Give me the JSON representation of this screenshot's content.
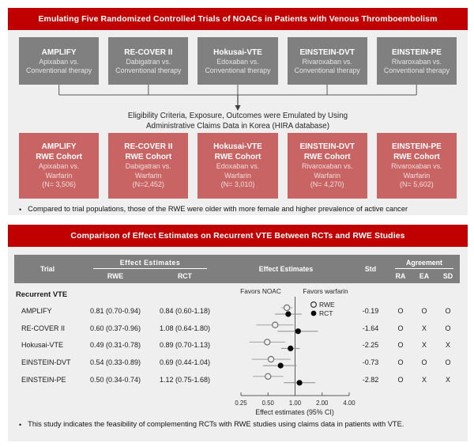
{
  "colors": {
    "accent_red": "#C00000",
    "rct_box_gray": "#808080",
    "rwe_box_salmon": "#C96464",
    "table_header_gray": "#7F7F7F",
    "panel_background": "#EFEFEF"
  },
  "panel1": {
    "title": "Emulating Five Randomized Controlled Trials of NOACs in Patients with Venous Thromboembolism",
    "rct_boxes": [
      {
        "name": "AMPLIFY",
        "line1": "Apixaban vs.",
        "line2": "Conventional therapy"
      },
      {
        "name": "RE-COVER II",
        "line1": "Dabigatran vs.",
        "line2": "Conventional therapy"
      },
      {
        "name": "Hokusai-VTE",
        "line1": "Edoxaban vs.",
        "line2": "Conventional therapy"
      },
      {
        "name": "EINSTEIN-DVT",
        "line1": "Rivaroxaban vs.",
        "line2": "Conventional therapy"
      },
      {
        "name": "EINSTEIN-PE",
        "line1": "Rivaroxaban vs.",
        "line2": "Conventional therapy"
      }
    ],
    "arrow_text_line1": "Eligibility Criteria, Exposure, Outcomes were Emulated by Using",
    "arrow_text_line2": "Administrative Claims Data in Korea (HIRA database)",
    "rwe_boxes": [
      {
        "name": "AMPLIFY",
        "cohort": "RWE Cohort",
        "line1": "Apixaban vs.",
        "line2": "Warfarin",
        "n": "(N= 3,506)"
      },
      {
        "name": "RE-COVER II",
        "cohort": "RWE Cohort",
        "line1": "Dabigatran vs.",
        "line2": "Warfarin",
        "n": "(N=2,452)"
      },
      {
        "name": "Hokusai-VTE",
        "cohort": "RWE Cohort",
        "line1": "Edoxaban vs.",
        "line2": "Warfarin",
        "n": "(N= 3,010)"
      },
      {
        "name": "EINSTEIN-DVT",
        "cohort": "RWE Cohort",
        "line1": "Rivaroxaban vs.",
        "line2": "Warfarin",
        "n": "(N= 4,270)"
      },
      {
        "name": "EINSTEIN-PE",
        "cohort": "RWE Cohort",
        "line1": "Rivaroxaban vs.",
        "line2": "Warfarin",
        "n": "(N= 5,602)"
      }
    ],
    "bullet": "Compared to trial populations, those of the RWE were older with more female and higher prevalence of active cancer"
  },
  "panel2": {
    "title": "Comparison of Effect Estimates on Recurrent VTE Between RCTs and RWE Studies",
    "table": {
      "col_trial": "Trial",
      "col_effect_group": "Effect  Estimates",
      "col_rwe": "RWE",
      "col_rct": "RCT",
      "col_effect_plot": "Effect Estimates",
      "col_std": "Std",
      "col_agreement": "Agreement",
      "col_ra": "RA",
      "col_ea": "EA",
      "col_sd": "SD",
      "section": "Recurrent VTE",
      "rows": [
        {
          "trial": "AMPLIFY",
          "rwe": "0.81 (0.70-0.94)",
          "rct": "0.84 (0.60-1.18)",
          "std": "-0.19",
          "ra": "O",
          "ea": "O",
          "sd": "O"
        },
        {
          "trial": "RE-COVER II",
          "rwe": "0.60 (0.37-0.96)",
          "rct": "1.08 (0.64-1.80)",
          "std": "-1.64",
          "ra": "O",
          "ea": "X",
          "sd": "O"
        },
        {
          "trial": "Hokusai-VTE",
          "rwe": "0.49 (0.31-0.78)",
          "rct": "0.89 (0.70-1.13)",
          "std": "-2.25",
          "ra": "O",
          "ea": "X",
          "sd": "X"
        },
        {
          "trial": "EINSTEIN-DVT",
          "rwe": "0.54 (0.33-0.89)",
          "rct": "0.69 (0.44-1.04)",
          "std": "-0.73",
          "ra": "O",
          "ea": "O",
          "sd": "O"
        },
        {
          "trial": "EINSTEIN-PE",
          "rwe": "0.50 (0.34-0.74)",
          "rct": "1.12 (0.75-1.68)",
          "std": "-2.82",
          "ra": "O",
          "ea": "X",
          "sd": "X"
        }
      ]
    },
    "bullet": "This study indicates the feasibility of complementing RCTs with RWE studies using claims data in patients with VTE."
  },
  "chart_data": {
    "type": "scatter",
    "subtype": "forest-plot",
    "title": "",
    "xlabel": "Effect estimates (95% CI)",
    "x_scale": "log2",
    "x_ticks": [
      "0.25",
      "0.50",
      "1.00",
      "2.00",
      "4.00"
    ],
    "x_tick_values": [
      0.25,
      0.5,
      1,
      2,
      4
    ],
    "xlim": [
      0.25,
      4
    ],
    "reference_line": 1.0,
    "favors_left": "Favors NOAC",
    "favors_right": "Favors warfarin",
    "legend_position": "top-right",
    "categories": [
      "AMPLIFY",
      "RE-COVER II",
      "Hokusai-VTE",
      "EINSTEIN-DVT",
      "EINSTEIN-PE"
    ],
    "series": [
      {
        "name": "RWE",
        "marker": "open-circle",
        "points": [
          {
            "est": 0.81,
            "lo": 0.7,
            "hi": 0.94
          },
          {
            "est": 0.6,
            "lo": 0.37,
            "hi": 0.96
          },
          {
            "est": 0.49,
            "lo": 0.31,
            "hi": 0.78
          },
          {
            "est": 0.54,
            "lo": 0.33,
            "hi": 0.89
          },
          {
            "est": 0.5,
            "lo": 0.34,
            "hi": 0.74
          }
        ]
      },
      {
        "name": "RCT",
        "marker": "filled-circle",
        "points": [
          {
            "est": 0.84,
            "lo": 0.6,
            "hi": 1.18
          },
          {
            "est": 1.08,
            "lo": 0.64,
            "hi": 1.8
          },
          {
            "est": 0.89,
            "lo": 0.7,
            "hi": 1.13
          },
          {
            "est": 0.69,
            "lo": 0.44,
            "hi": 1.04
          },
          {
            "est": 1.12,
            "lo": 0.75,
            "hi": 1.68
          }
        ]
      }
    ]
  }
}
